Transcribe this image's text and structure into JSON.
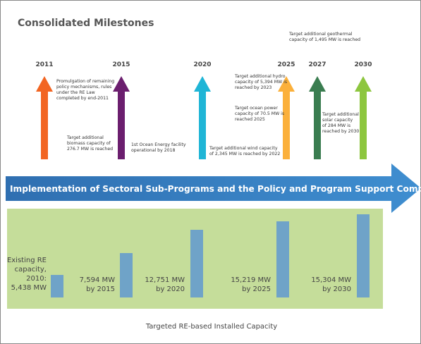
{
  "title": "Consolidated Milestones",
  "milestones": [
    {
      "year": "2011",
      "notes": [
        [
          "Promulgation of remaining",
          "policy mechanisms, rules",
          "under the RE Law",
          "completed by end-2011"
        ],
        [
          "Target additional",
          "biomass capacity of",
          "276.7 MW is reached"
        ]
      ]
    },
    {
      "year": "2015",
      "notes": [
        [
          "1st Ocean Energy facility",
          "operational by 2018"
        ]
      ]
    },
    {
      "year": "2020",
      "notes": [
        [
          "Target additional wind capacity",
          "of 2,345 MW is reached by 2022"
        ]
      ]
    },
    {
      "year": "2025",
      "notes": [
        [
          "Target additional hydro",
          "capacity of 5,394 MW is",
          "reached by 2023"
        ],
        [
          "Target ocean power",
          "capacity of 70.5 MW is",
          "reached 2025"
        ]
      ]
    },
    {
      "year": "2027",
      "notes": [
        [
          "Target additional geothermal",
          "capacity of 1,495 MW is reached"
        ]
      ]
    },
    {
      "year": "2030",
      "notes": [
        [
          "Target additional",
          "solar capacity",
          "of 284 MW is",
          "reached by 2030"
        ]
      ]
    }
  ],
  "banner": "Implementation of Sectoral Sub-Programs and the Policy and Program Support Component",
  "capacities": [
    [
      "Existing RE",
      "capacity,",
      "2010:",
      "5,438 MW"
    ],
    [
      "7,594 MW",
      "by 2015"
    ],
    [
      "12,751 MW",
      "by 2020"
    ],
    [
      "15,219 MW",
      "by 2025"
    ],
    [
      "15,304 MW",
      "by 2030"
    ]
  ],
  "caption": "Targeted RE-based Installed Capacity"
}
